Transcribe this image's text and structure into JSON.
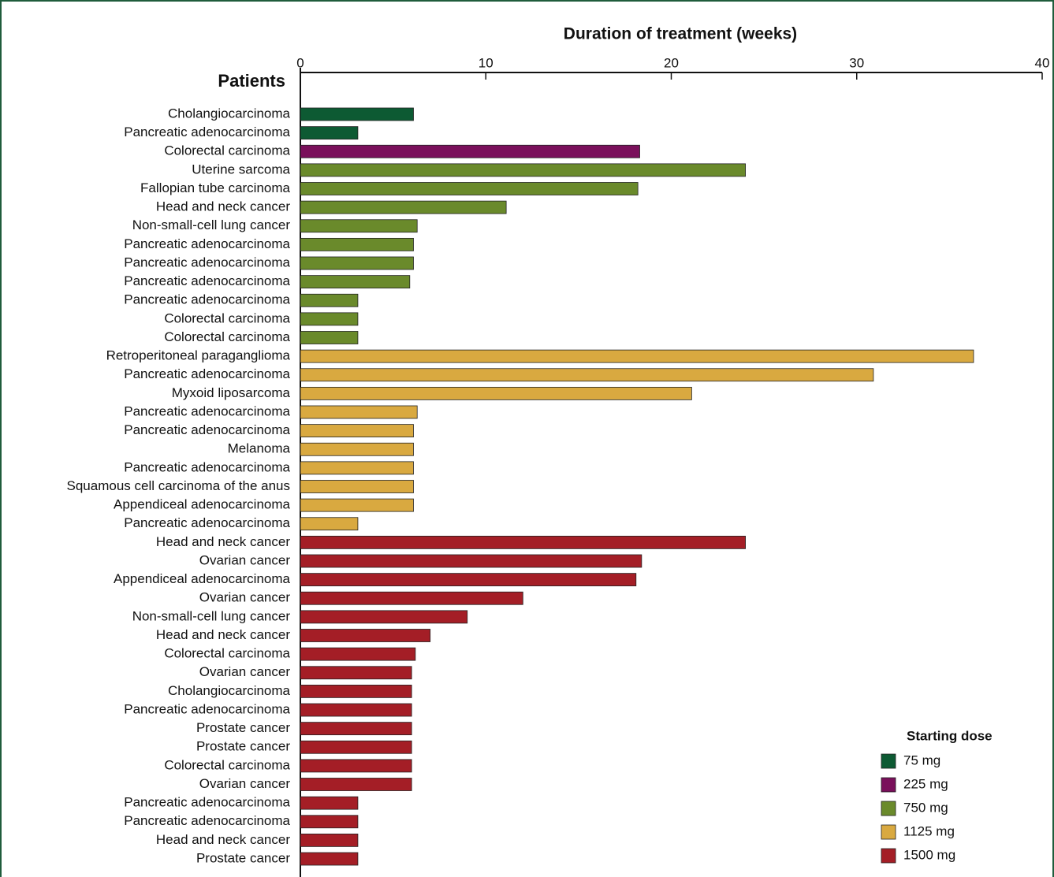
{
  "chart_data": {
    "type": "bar",
    "orientation": "horizontal",
    "xlabel": "Duration of treatment (weeks)",
    "ylabel": "Patients",
    "xlim": [
      0,
      40
    ],
    "xticks": [
      0,
      10,
      20,
      30,
      40
    ],
    "legend_title": "Starting dose",
    "legend_position": "lower right",
    "categories": [
      "Cholangiocarcinoma",
      "Pancreatic adenocarcinoma",
      "Colorectal carcinoma",
      "Uterine sarcoma",
      "Fallopian tube carcinoma",
      "Head and neck cancer",
      "Non-small-cell lung cancer",
      "Pancreatic adenocarcinoma",
      "Pancreatic adenocarcinoma",
      "Pancreatic adenocarcinoma",
      "Pancreatic adenocarcinoma",
      "Colorectal carcinoma",
      "Colorectal carcinoma",
      "Retroperitoneal paraganglioma",
      "Pancreatic adenocarcinoma",
      "Myxoid liposarcoma",
      "Pancreatic adenocarcinoma",
      "Pancreatic adenocarcinoma",
      "Melanoma",
      "Pancreatic adenocarcinoma",
      "Squamous cell carcinoma of the anus",
      "Appendiceal adenocarcinoma",
      "Pancreatic adenocarcinoma",
      "Head and neck cancer",
      "Ovarian cancer",
      "Appendiceal adenocarcinoma",
      "Ovarian cancer",
      "Non-small-cell lung cancer",
      "Head and neck cancer",
      "Colorectal carcinoma",
      "Ovarian cancer",
      "Cholangiocarcinoma",
      "Pancreatic adenocarcinoma",
      "Prostate cancer",
      "Prostate cancer",
      "Colorectal carcinoma",
      "Ovarian cancer",
      "Pancreatic adenocarcinoma",
      "Pancreatic adenocarcinoma",
      "Head and neck cancer",
      "Prostate cancer"
    ],
    "series": [
      {
        "name": "75 mg",
        "color": "#0d5a33",
        "values": [
          6.1,
          3.1,
          null,
          null,
          null,
          null,
          null,
          null,
          null,
          null,
          null,
          null,
          null,
          null,
          null,
          null,
          null,
          null,
          null,
          null,
          null,
          null,
          null,
          null,
          null,
          null,
          null,
          null,
          null,
          null,
          null,
          null,
          null,
          null,
          null,
          null,
          null,
          null,
          null,
          null,
          null
        ]
      },
      {
        "name": "225 mg",
        "color": "#7a105b",
        "values": [
          null,
          null,
          18.3,
          null,
          null,
          null,
          null,
          null,
          null,
          null,
          null,
          null,
          null,
          null,
          null,
          null,
          null,
          null,
          null,
          null,
          null,
          null,
          null,
          null,
          null,
          null,
          null,
          null,
          null,
          null,
          null,
          null,
          null,
          null,
          null,
          null,
          null,
          null,
          null,
          null,
          null
        ]
      },
      {
        "name": "750 mg",
        "color": "#6a8a2b",
        "values": [
          null,
          null,
          null,
          24.0,
          18.2,
          11.1,
          6.3,
          6.1,
          6.1,
          5.9,
          3.1,
          3.1,
          3.1,
          null,
          null,
          null,
          null,
          null,
          null,
          null,
          null,
          null,
          null,
          null,
          null,
          null,
          null,
          null,
          null,
          null,
          null,
          null,
          null,
          null,
          null,
          null,
          null,
          null,
          null,
          null,
          null
        ]
      },
      {
        "name": "1125 mg",
        "color": "#d9a940",
        "values": [
          null,
          null,
          null,
          null,
          null,
          null,
          null,
          null,
          null,
          null,
          null,
          null,
          null,
          36.3,
          30.9,
          21.1,
          6.3,
          6.1,
          6.1,
          6.1,
          6.1,
          6.1,
          3.1,
          null,
          null,
          null,
          null,
          null,
          null,
          null,
          null,
          null,
          null,
          null,
          null,
          null,
          null,
          null,
          null,
          null,
          null
        ]
      },
      {
        "name": "1500 mg",
        "color": "#a41e26",
        "values": [
          null,
          null,
          null,
          null,
          null,
          null,
          null,
          null,
          null,
          null,
          null,
          null,
          null,
          null,
          null,
          null,
          null,
          null,
          null,
          null,
          null,
          null,
          null,
          24.0,
          18.4,
          18.1,
          12.0,
          9.0,
          7.0,
          6.2,
          6.0,
          6.0,
          6.0,
          6.0,
          6.0,
          6.0,
          6.0,
          3.1,
          3.1,
          3.1,
          3.1
        ]
      }
    ]
  }
}
